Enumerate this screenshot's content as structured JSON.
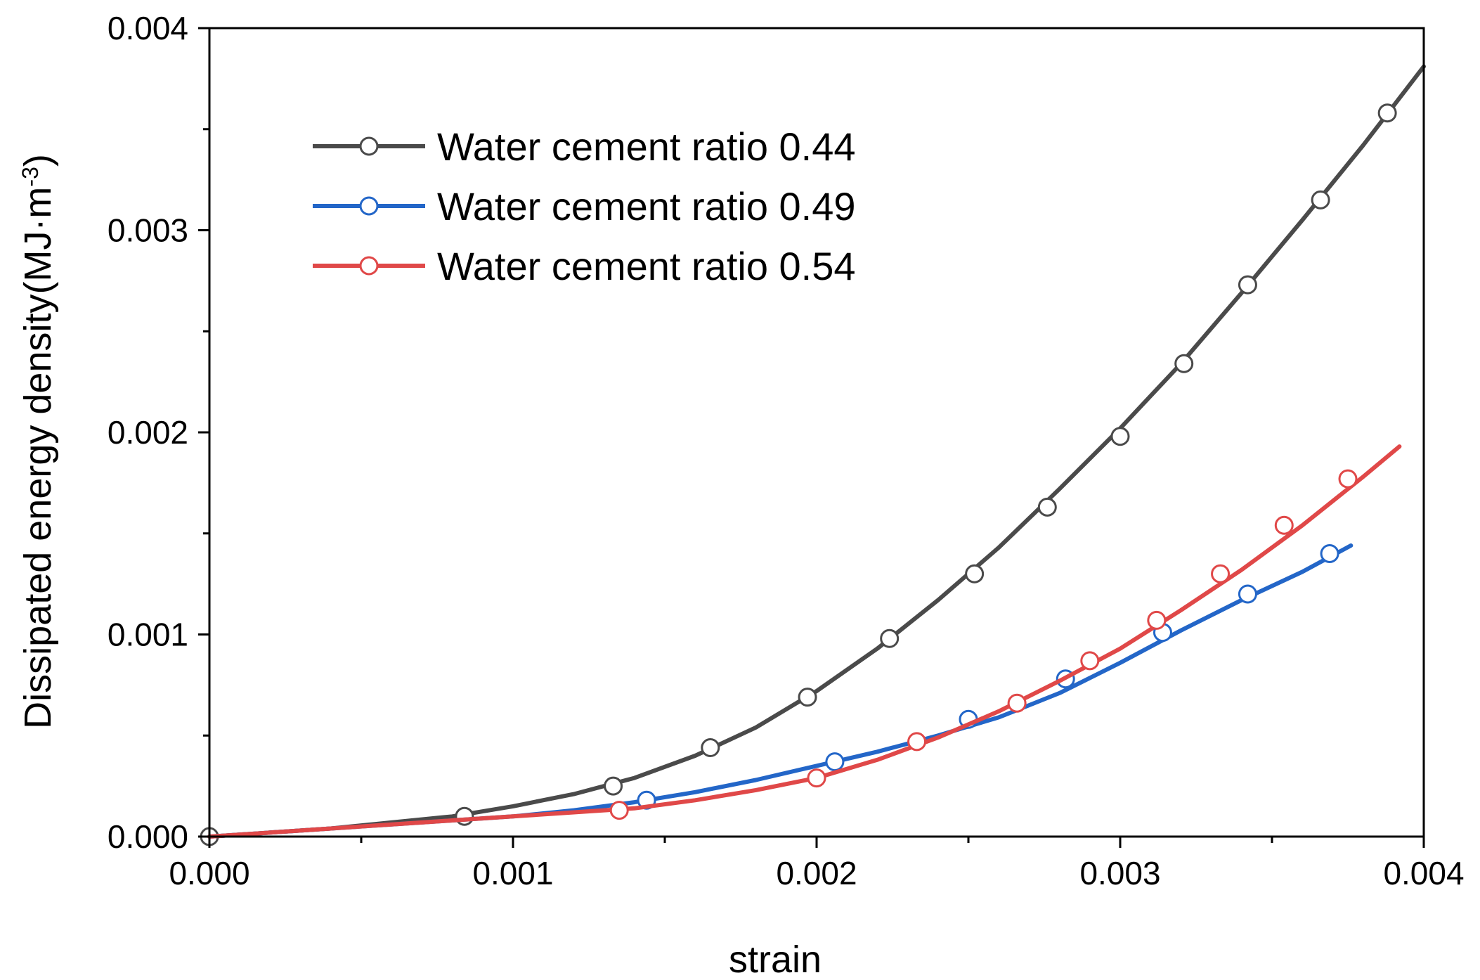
{
  "chart_data": {
    "type": "line",
    "title": "",
    "xlabel": "strain",
    "ylabel_main": "Dissipated energy density(MJ·m",
    "ylabel_sup": "-3",
    "ylabel_tail": ")",
    "xlim": [
      0,
      0.004
    ],
    "ylim": [
      0,
      0.004
    ],
    "xticks": [
      0,
      0.001,
      0.002,
      0.003,
      0.004
    ],
    "xtick_labels": [
      "0.000",
      "0.001",
      "0.002",
      "0.003",
      "0.004"
    ],
    "yticks": [
      0,
      0.001,
      0.002,
      0.003,
      0.004
    ],
    "ytick_labels": [
      "0.000",
      "0.001",
      "0.002",
      "0.003",
      "0.004"
    ],
    "minor_ticks": {
      "x": [
        0.0005,
        0.0015,
        0.0025,
        0.0035
      ],
      "y": [
        0.0005,
        0.0015,
        0.0025,
        0.0035
      ]
    },
    "legend_position": "top-left",
    "series": [
      {
        "name": "Water cement ratio 0.44",
        "color": "#4a4a4a",
        "points": [
          [
            0,
            0
          ],
          [
            0.0002,
            2e-05
          ],
          [
            0.0004,
            4e-05
          ],
          [
            0.0006,
            7e-05
          ],
          [
            0.0008,
            0.0001
          ],
          [
            0.001,
            0.00015
          ],
          [
            0.0012,
            0.00021
          ],
          [
            0.0014,
            0.00029
          ],
          [
            0.0016,
            0.0004
          ],
          [
            0.0018,
            0.00054
          ],
          [
            0.002,
            0.00072
          ],
          [
            0.0022,
            0.00093
          ],
          [
            0.0024,
            0.00117
          ],
          [
            0.0026,
            0.00143
          ],
          [
            0.0028,
            0.00172
          ],
          [
            0.003,
            0.00202
          ],
          [
            0.0032,
            0.00234
          ],
          [
            0.0034,
            0.00269
          ],
          [
            0.0036,
            0.00305
          ],
          [
            0.0038,
            0.00342
          ],
          [
            0.004,
            0.00381
          ]
        ],
        "markers": [
          [
            0,
            0
          ],
          [
            0.00084,
            0.0001
          ],
          [
            0.00133,
            0.00025
          ],
          [
            0.00165,
            0.00044
          ],
          [
            0.00197,
            0.00069
          ],
          [
            0.00224,
            0.00098
          ],
          [
            0.00252,
            0.0013
          ],
          [
            0.00276,
            0.00163
          ],
          [
            0.003,
            0.00198
          ],
          [
            0.00321,
            0.00234
          ],
          [
            0.00342,
            0.00273
          ],
          [
            0.00366,
            0.00315
          ],
          [
            0.00388,
            0.00358
          ]
        ]
      },
      {
        "name": "Water cement ratio 0.49",
        "color": "#2366c8",
        "points": [
          [
            0,
            0
          ],
          [
            0.0002,
            2e-05
          ],
          [
            0.0004,
            4e-05
          ],
          [
            0.0006,
            6e-05
          ],
          [
            0.0008,
            8e-05
          ],
          [
            0.001,
            0.0001
          ],
          [
            0.0012,
            0.00013
          ],
          [
            0.0014,
            0.00017
          ],
          [
            0.0016,
            0.00022
          ],
          [
            0.0018,
            0.00028
          ],
          [
            0.002,
            0.00035
          ],
          [
            0.0022,
            0.00042
          ],
          [
            0.0024,
            0.0005
          ],
          [
            0.0026,
            0.00059
          ],
          [
            0.0028,
            0.00071
          ],
          [
            0.003,
            0.00086
          ],
          [
            0.0032,
            0.00102
          ],
          [
            0.0034,
            0.00117
          ],
          [
            0.0036,
            0.00131
          ],
          [
            0.00376,
            0.00144
          ]
        ],
        "markers": [
          [
            0.00144,
            0.00018
          ],
          [
            0.00206,
            0.00037
          ],
          [
            0.0025,
            0.00058
          ],
          [
            0.00282,
            0.00078
          ],
          [
            0.00314,
            0.00101
          ],
          [
            0.00342,
            0.0012
          ],
          [
            0.00369,
            0.0014
          ]
        ]
      },
      {
        "name": "Water cement ratio 0.54",
        "color": "#e04848",
        "points": [
          [
            0,
            0
          ],
          [
            0.0002,
            2e-05
          ],
          [
            0.0004,
            4e-05
          ],
          [
            0.0006,
            6e-05
          ],
          [
            0.0008,
            8e-05
          ],
          [
            0.001,
            0.0001
          ],
          [
            0.0012,
            0.00012
          ],
          [
            0.0014,
            0.00014
          ],
          [
            0.0016,
            0.00018
          ],
          [
            0.0018,
            0.00023
          ],
          [
            0.002,
            0.00029
          ],
          [
            0.0022,
            0.00038
          ],
          [
            0.0024,
            0.00049
          ],
          [
            0.0026,
            0.00062
          ],
          [
            0.0028,
            0.00077
          ],
          [
            0.003,
            0.00093
          ],
          [
            0.0032,
            0.00112
          ],
          [
            0.0034,
            0.00132
          ],
          [
            0.0036,
            0.00154
          ],
          [
            0.0038,
            0.00178
          ],
          [
            0.00392,
            0.00193
          ]
        ],
        "markers": [
          [
            0.00135,
            0.00013
          ],
          [
            0.002,
            0.00029
          ],
          [
            0.00233,
            0.00047
          ],
          [
            0.00266,
            0.00066
          ],
          [
            0.0029,
            0.00087
          ],
          [
            0.00312,
            0.00107
          ],
          [
            0.00333,
            0.0013
          ],
          [
            0.00354,
            0.00154
          ],
          [
            0.00375,
            0.00177
          ]
        ]
      }
    ]
  }
}
